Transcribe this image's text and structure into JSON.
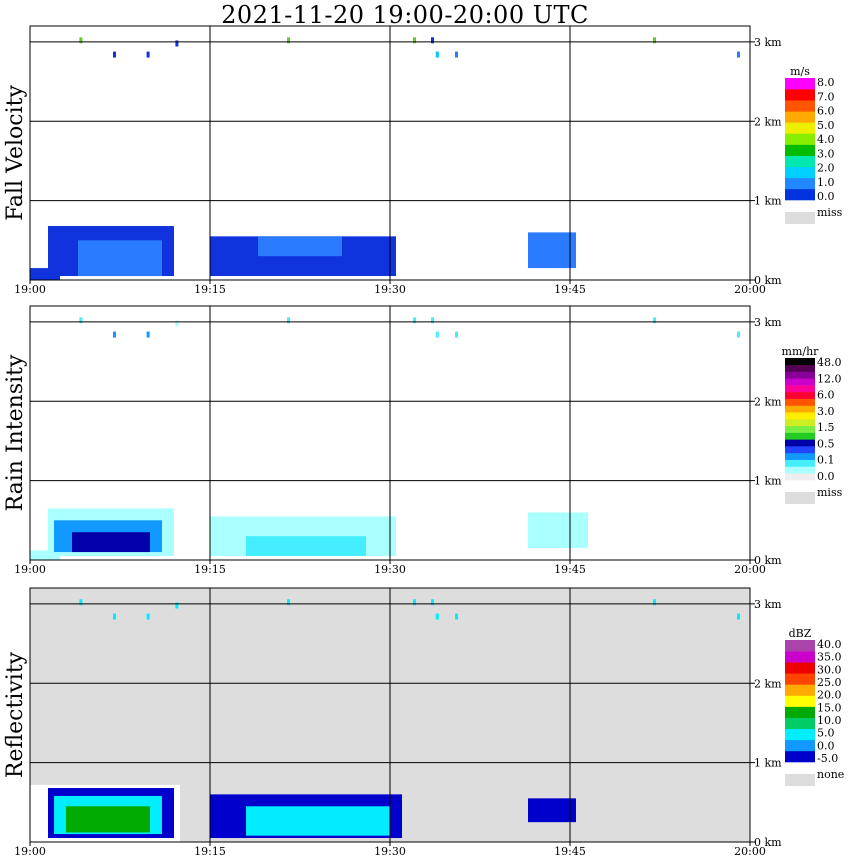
{
  "title": "2021-11-20   19:00-20:00 UTC",
  "chart_data": [
    {
      "type": "heatmap",
      "ylabel": "Fall Velocity",
      "x_ticks": [
        "19:00",
        "19:15",
        "19:30",
        "19:45",
        "20:00"
      ],
      "y_ticks": [
        "0 km",
        "1 km",
        "2 km",
        "3 km"
      ],
      "background": "#ffffff",
      "grid": true,
      "legend_position": "right",
      "colorbar": {
        "unit": "m/s",
        "colors": [
          "#0033dd",
          "#2288ff",
          "#00d0ff",
          "#00e8b0",
          "#00bb00",
          "#88ee00",
          "#eeee00",
          "#ffaa00",
          "#ff5500",
          "#ff0000",
          "#ff00ff"
        ],
        "labels": [
          "8.0",
          "7.0",
          "6.0",
          "5.0",
          "4.0",
          "3.0",
          "2.0",
          "1.0",
          "0.0"
        ],
        "miss_label": "miss"
      },
      "echoes": [
        {
          "t0": 0.0,
          "t1": 2.5,
          "h0": 0.0,
          "h1": 0.15,
          "color": "#1133dd"
        },
        {
          "t0": 1.5,
          "t1": 12.0,
          "h0": 0.05,
          "h1": 0.68,
          "color": "#1133dd"
        },
        {
          "t0": 4.0,
          "t1": 11.0,
          "h0": 0.05,
          "h1": 0.5,
          "color": "#2a7bff"
        },
        {
          "t0": 15.0,
          "t1": 30.5,
          "h0": 0.05,
          "h1": 0.55,
          "color": "#1133dd"
        },
        {
          "t0": 19.0,
          "t1": 26.0,
          "h0": 0.3,
          "h1": 0.55,
          "color": "#2a7bff"
        },
        {
          "t0": 41.5,
          "t1": 45.5,
          "h0": 0.15,
          "h1": 0.6,
          "color": "#2a7bff"
        }
      ],
      "upper_echoes": [
        {
          "t": 4.2,
          "h": 3.02,
          "color": "#66cc33"
        },
        {
          "t": 7.0,
          "h": 2.84,
          "color": "#1133dd"
        },
        {
          "t": 9.8,
          "h": 2.84,
          "color": "#1133dd"
        },
        {
          "t": 12.2,
          "h": 2.98,
          "color": "#1133dd"
        },
        {
          "t": 21.5,
          "h": 3.02,
          "color": "#66cc33"
        },
        {
          "t": 32.0,
          "h": 3.02,
          "color": "#66cc33"
        },
        {
          "t": 33.5,
          "h": 3.02,
          "color": "#1133dd"
        },
        {
          "t": 33.9,
          "h": 2.84,
          "color": "#00c8ff"
        },
        {
          "t": 35.5,
          "h": 2.84,
          "color": "#2a7bff"
        },
        {
          "t": 52.0,
          "h": 3.02,
          "color": "#66cc33"
        },
        {
          "t": 59.0,
          "h": 2.84,
          "color": "#2a7bff"
        }
      ]
    },
    {
      "type": "heatmap",
      "ylabel": "Rain Intensity",
      "x_ticks": [
        "19:00",
        "19:15",
        "19:30",
        "19:45",
        "20:00"
      ],
      "y_ticks": [
        "0 km",
        "1 km",
        "2 km",
        "3 km"
      ],
      "background": "#ffffff",
      "grid": true,
      "legend_position": "right",
      "colorbar": {
        "unit": "mm/hr",
        "colors": [
          "#eeeeee",
          "#aaffff",
          "#44eeff",
          "#1199ff",
          "#2244ff",
          "#0000aa",
          "#22cc22",
          "#77ee44",
          "#ccee22",
          "#ffee00",
          "#ffaa00",
          "#ff5500",
          "#ff0033",
          "#ff0099",
          "#cc00cc",
          "#880099",
          "#550055",
          "#000000"
        ],
        "labels": [
          "48.0",
          "12.0",
          "6.0",
          "3.0",
          "1.5",
          "0.5",
          "0.1",
          "0.0"
        ],
        "miss_label": "miss"
      },
      "echoes": [
        {
          "t0": 0.0,
          "t1": 2.5,
          "h0": 0.0,
          "h1": 0.12,
          "color": "#aaffff"
        },
        {
          "t0": 1.5,
          "t1": 12.0,
          "h0": 0.05,
          "h1": 0.65,
          "color": "#aaffff"
        },
        {
          "t0": 2.0,
          "t1": 11.0,
          "h0": 0.1,
          "h1": 0.5,
          "color": "#1199ff"
        },
        {
          "t0": 3.5,
          "t1": 10.0,
          "h0": 0.1,
          "h1": 0.35,
          "color": "#0000aa"
        },
        {
          "t0": 15.0,
          "t1": 30.5,
          "h0": 0.05,
          "h1": 0.55,
          "color": "#aaffff"
        },
        {
          "t0": 18.0,
          "t1": 28.0,
          "h0": 0.05,
          "h1": 0.3,
          "color": "#44eeff"
        },
        {
          "t0": 41.5,
          "t1": 46.5,
          "h0": 0.15,
          "h1": 0.6,
          "color": "#aaffff"
        }
      ],
      "upper_echoes": [
        {
          "t": 4.2,
          "h": 3.02,
          "color": "#44eeff"
        },
        {
          "t": 7.0,
          "h": 2.84,
          "color": "#1199ff"
        },
        {
          "t": 9.8,
          "h": 2.84,
          "color": "#1199ff"
        },
        {
          "t": 12.2,
          "h": 2.98,
          "color": "#aaffff"
        },
        {
          "t": 21.5,
          "h": 3.02,
          "color": "#44eeff"
        },
        {
          "t": 32.0,
          "h": 3.02,
          "color": "#44eeff"
        },
        {
          "t": 33.5,
          "h": 3.02,
          "color": "#44eeff"
        },
        {
          "t": 33.9,
          "h": 2.84,
          "color": "#44eeff"
        },
        {
          "t": 35.5,
          "h": 2.84,
          "color": "#44eeff"
        },
        {
          "t": 52.0,
          "h": 3.02,
          "color": "#44eeff"
        },
        {
          "t": 59.0,
          "h": 2.84,
          "color": "#44eeff"
        }
      ]
    },
    {
      "type": "heatmap",
      "ylabel": "Reflectivity",
      "x_ticks": [
        "19:00",
        "19:15",
        "19:30",
        "19:45",
        "20:00"
      ],
      "y_ticks": [
        "0 km",
        "1 km",
        "2 km",
        "3 km"
      ],
      "background": "#dddddd",
      "grid": true,
      "legend_position": "right",
      "colorbar": {
        "unit": "dBZ",
        "colors": [
          "#0000cc",
          "#1199ff",
          "#00eeff",
          "#00cc66",
          "#00aa00",
          "#ffff00",
          "#ffaa00",
          "#ff4400",
          "#ee0000",
          "#cc00cc",
          "#aa44aa"
        ],
        "labels": [
          "40.0",
          "35.0",
          "30.0",
          "25.0",
          "20.0",
          "15.0",
          "10.0",
          "5.0",
          "0.0",
          "-5.0"
        ],
        "miss_label": "none"
      },
      "echoes": [
        {
          "t0": 0.0,
          "t1": 12.5,
          "h0": 0.0,
          "h1": 0.72,
          "color": "#ffffff"
        },
        {
          "t0": 1.5,
          "t1": 12.0,
          "h0": 0.05,
          "h1": 0.68,
          "color": "#0000cc"
        },
        {
          "t0": 2.0,
          "t1": 11.0,
          "h0": 0.1,
          "h1": 0.58,
          "color": "#00eeff"
        },
        {
          "t0": 3.0,
          "t1": 10.0,
          "h0": 0.12,
          "h1": 0.45,
          "color": "#00aa00"
        },
        {
          "t0": 15.0,
          "t1": 31.0,
          "h0": 0.05,
          "h1": 0.6,
          "color": "#0000cc"
        },
        {
          "t0": 18.0,
          "t1": 30.0,
          "h0": 0.08,
          "h1": 0.45,
          "color": "#00eeff"
        },
        {
          "t0": 41.5,
          "t1": 45.5,
          "h0": 0.25,
          "h1": 0.55,
          "color": "#0000cc"
        }
      ],
      "upper_echoes": [
        {
          "t": 4.2,
          "h": 3.02,
          "color": "#00eeff"
        },
        {
          "t": 7.0,
          "h": 2.84,
          "color": "#00eeff"
        },
        {
          "t": 9.8,
          "h": 2.84,
          "color": "#00eeff"
        },
        {
          "t": 12.2,
          "h": 2.98,
          "color": "#00eeff"
        },
        {
          "t": 21.5,
          "h": 3.02,
          "color": "#00eeff"
        },
        {
          "t": 32.0,
          "h": 3.02,
          "color": "#00eeff"
        },
        {
          "t": 33.5,
          "h": 3.02,
          "color": "#00eeff"
        },
        {
          "t": 33.9,
          "h": 2.84,
          "color": "#00eeff"
        },
        {
          "t": 35.5,
          "h": 2.84,
          "color": "#00eeff"
        },
        {
          "t": 52.0,
          "h": 3.02,
          "color": "#00eeff"
        },
        {
          "t": 59.0,
          "h": 2.84,
          "color": "#00eeff"
        }
      ]
    }
  ]
}
